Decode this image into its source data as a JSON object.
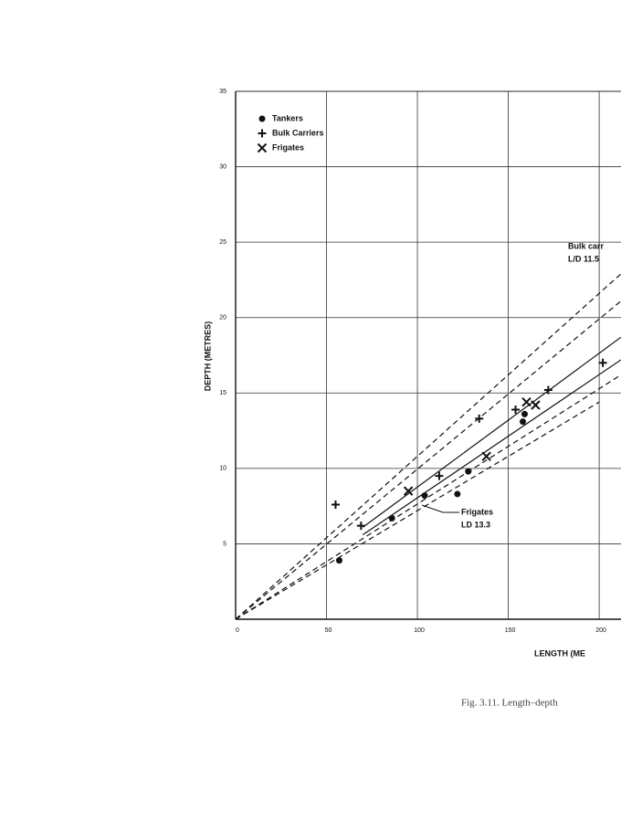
{
  "chart_data": {
    "type": "scatter",
    "x_label": "LENGTH (ME",
    "y_label": "DEPTH (METRES)",
    "caption": "Fig. 3.11. Length–depth",
    "xlim": [
      0,
      212
    ],
    "ylim": [
      0,
      35
    ],
    "xticks": [
      0,
      50,
      100,
      150,
      200
    ],
    "yticks": [
      5,
      10,
      15,
      20,
      25,
      30,
      35
    ],
    "grid": true,
    "series": [
      {
        "name": "Tankers",
        "marker": "dot",
        "color": "#111",
        "x": [
          57,
          86,
          104,
          122,
          128,
          158,
          159
        ],
        "values": [
          3.9,
          6.7,
          8.2,
          8.3,
          9.8,
          13.1,
          13.6
        ]
      },
      {
        "name": "Bulk Carriers",
        "marker": "plus",
        "color": "#111",
        "x": [
          55,
          69,
          112,
          134,
          154,
          172,
          202
        ],
        "values": [
          7.6,
          6.2,
          9.5,
          13.3,
          13.9,
          15.2,
          17.0
        ]
      },
      {
        "name": "Frigates",
        "marker": "cross",
        "color": "#111",
        "x": [
          95,
          138,
          160,
          165
        ],
        "values": [
          8.5,
          10.8,
          14.4,
          14.2
        ]
      }
    ],
    "lines": [
      {
        "style": "solid",
        "x": [
          70,
          212
        ],
        "values": [
          6.1,
          18.7
        ]
      },
      {
        "style": "solid",
        "x": [
          70,
          212
        ],
        "values": [
          5.6,
          17.2
        ]
      },
      {
        "style": "dashed",
        "x": [
          0,
          212
        ],
        "values": [
          0,
          22.9
        ]
      },
      {
        "style": "dashed",
        "x": [
          0,
          212
        ],
        "values": [
          0,
          21.1
        ]
      },
      {
        "style": "dashed",
        "x": [
          0,
          212
        ],
        "values": [
          0,
          16.2
        ]
      },
      {
        "style": "dashed",
        "x": [
          0,
          200
        ],
        "values": [
          0,
          14.4
        ]
      }
    ],
    "annotations": [
      "Bulk carr",
      "L/D 11.5",
      "Frigates",
      "LD 13.3"
    ]
  }
}
